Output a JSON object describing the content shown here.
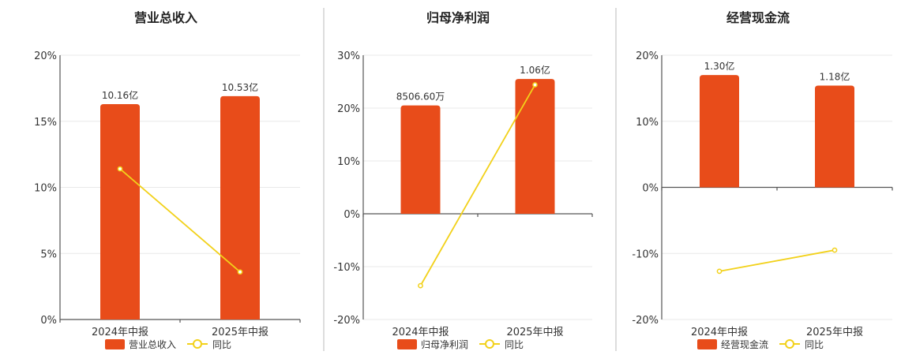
{
  "colors": {
    "bar": "#e84c1a",
    "line": "#f2d11a"
  },
  "chart_data": [
    {
      "type": "bar",
      "title": "营业总收入",
      "categories": [
        "2024年中报",
        "2025年中报"
      ],
      "ylim": [
        0,
        20
      ],
      "yticks": [
        "0%",
        "5%",
        "10%",
        "15%",
        "20%"
      ],
      "series": [
        {
          "name": "营业总收入",
          "kind": "bar",
          "values": [
            16.3,
            16.9
          ],
          "labels": [
            "10.16亿",
            "10.53亿"
          ]
        },
        {
          "name": "同比",
          "kind": "line",
          "values": [
            11.4,
            3.6
          ]
        }
      ]
    },
    {
      "type": "bar",
      "title": "归母净利润",
      "categories": [
        "2024年中报",
        "2025年中报"
      ],
      "ylim": [
        -20,
        30
      ],
      "yticks": [
        "-20%",
        "-10%",
        "0%",
        "10%",
        "20%",
        "30%"
      ],
      "series": [
        {
          "name": "归母净利润",
          "kind": "bar",
          "values": [
            20.5,
            25.5
          ],
          "labels": [
            "8506.60万",
            "1.06亿"
          ]
        },
        {
          "name": "同比",
          "kind": "line",
          "values": [
            -13.6,
            24.4
          ]
        }
      ]
    },
    {
      "type": "bar",
      "title": "经营现金流",
      "categories": [
        "2024年中报",
        "2025年中报"
      ],
      "ylim": [
        -20,
        20
      ],
      "yticks": [
        "-20%",
        "-10%",
        "0%",
        "10%",
        "20%"
      ],
      "series": [
        {
          "name": "经营现金流",
          "kind": "bar",
          "values": [
            17.0,
            15.4
          ],
          "labels": [
            "1.30亿",
            "1.18亿"
          ]
        },
        {
          "name": "同比",
          "kind": "line",
          "values": [
            -12.7,
            -9.5
          ]
        }
      ]
    }
  ]
}
